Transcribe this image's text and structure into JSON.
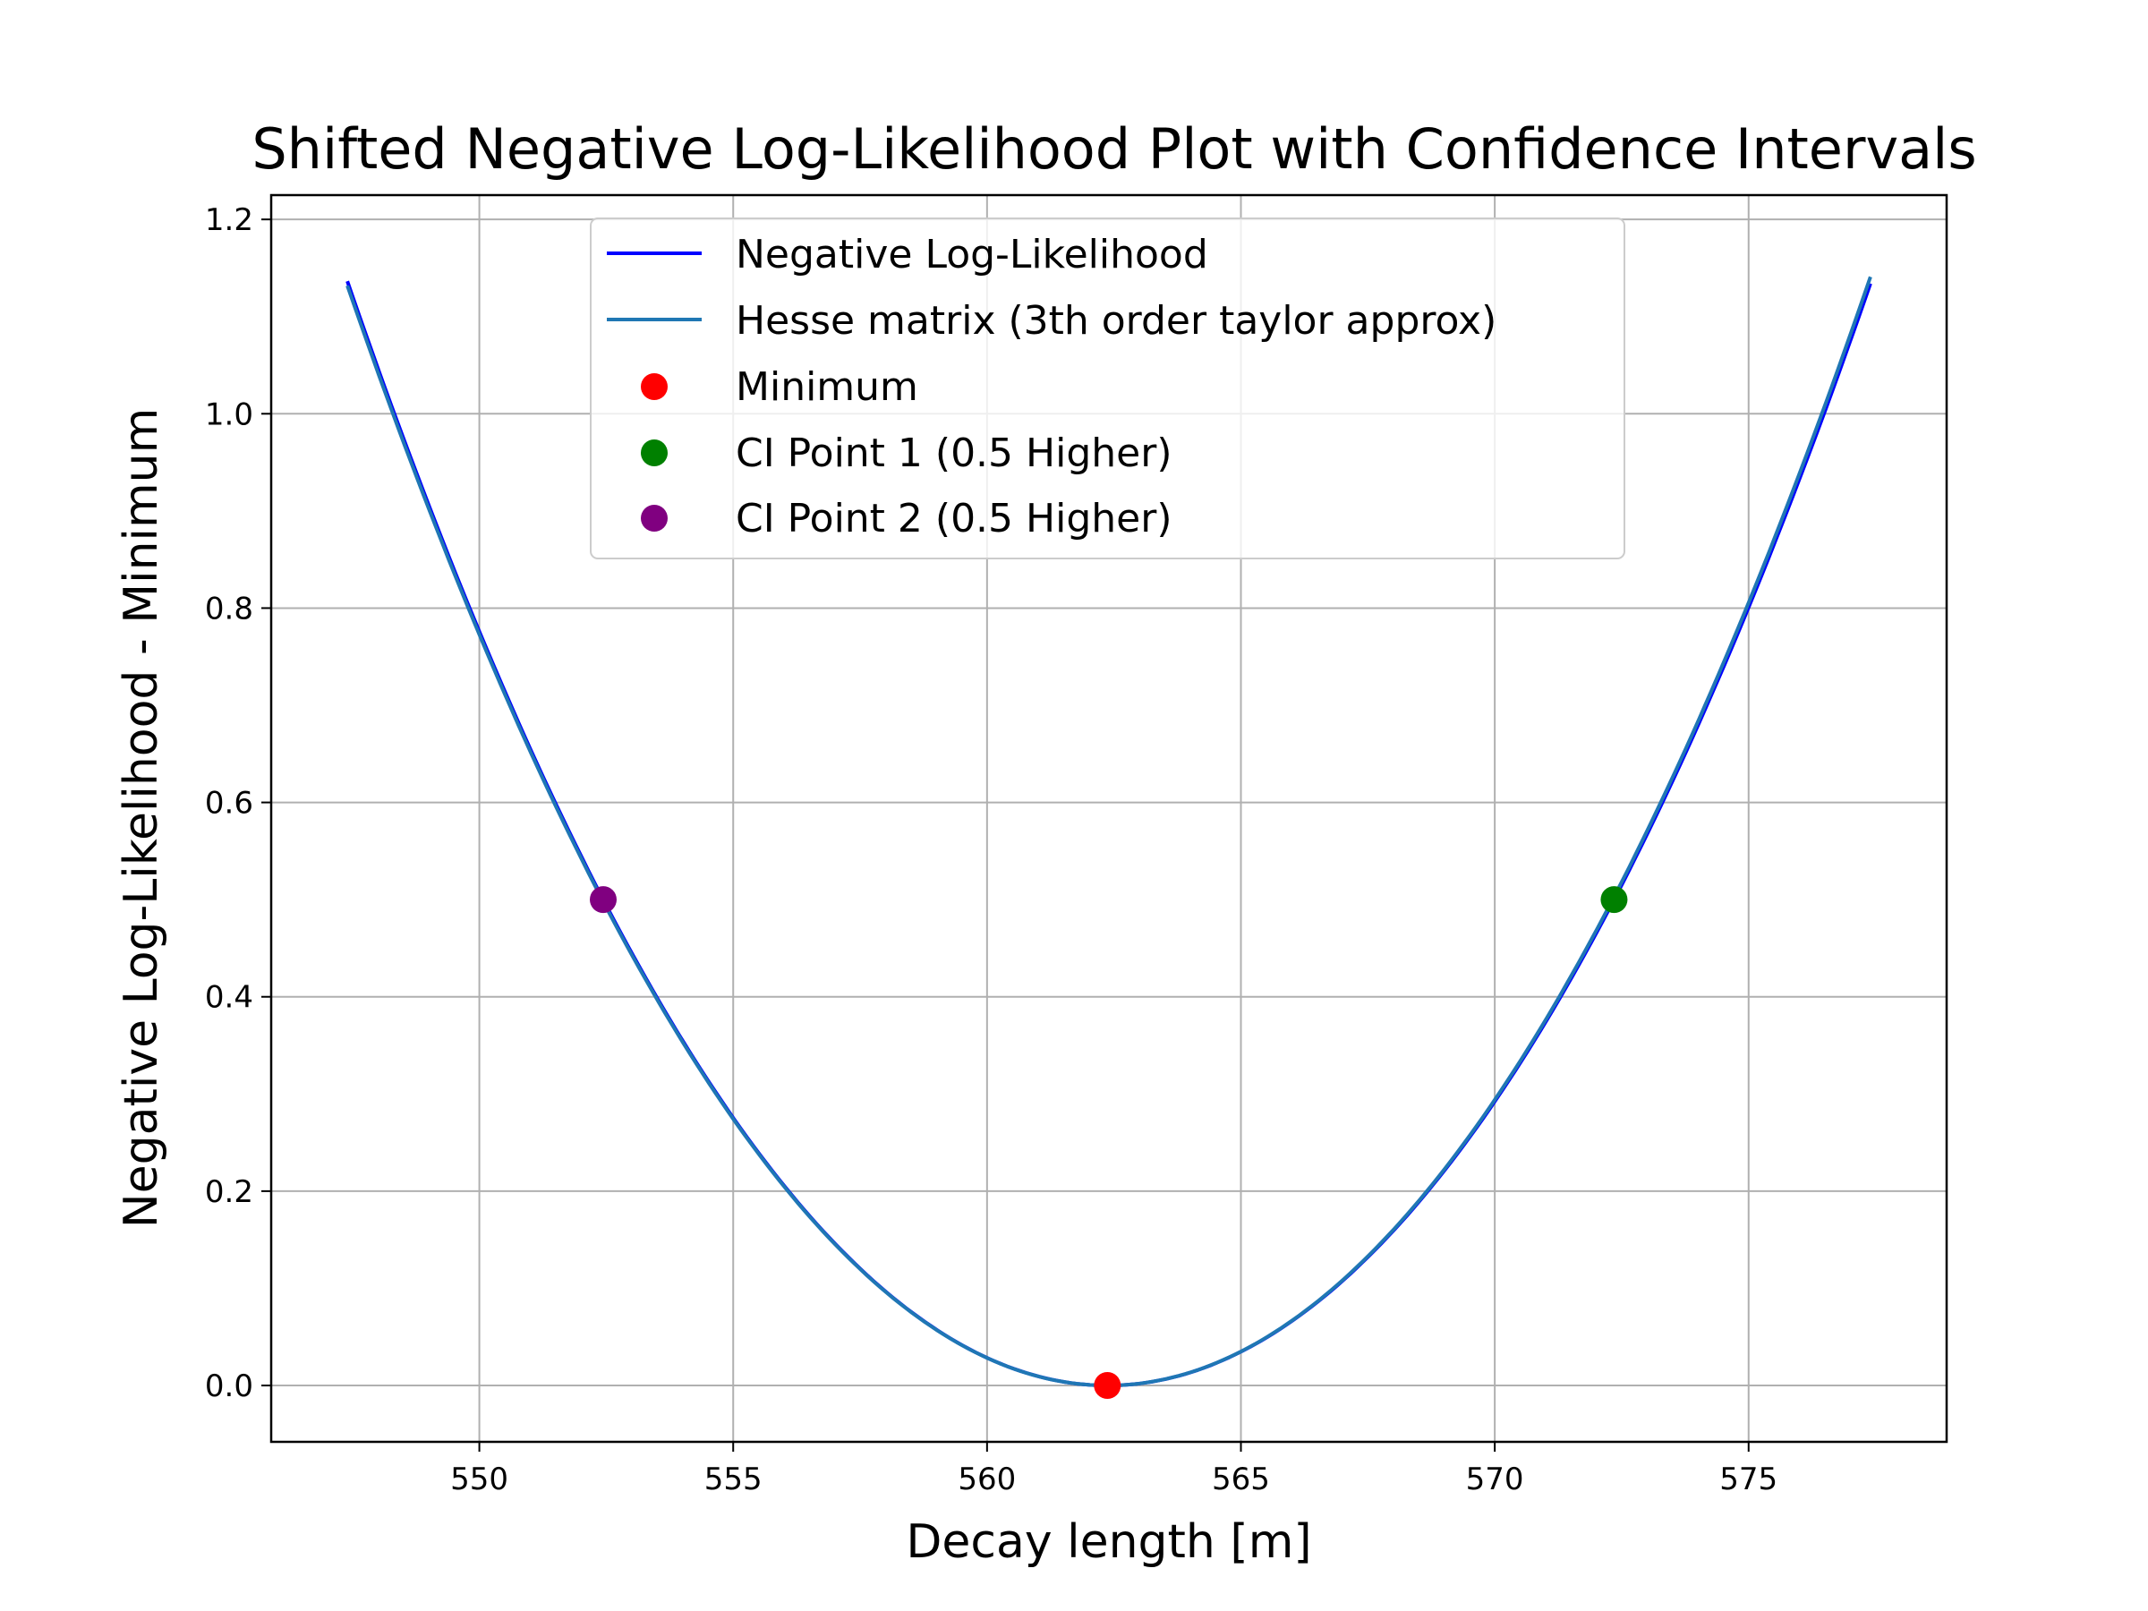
{
  "chart_data": {
    "type": "line",
    "title": "Shifted Negative Log-Likelihood Plot with Confidence Intervals",
    "xlabel": "Decay length [m]",
    "ylabel": "Negative Log-Likelihood - Minimum",
    "xlim": [
      545.9,
      578.9
    ],
    "ylim": [
      -0.058,
      1.225
    ],
    "xticks": [
      550,
      555,
      560,
      565,
      570,
      575
    ],
    "yticks": [
      0.0,
      0.2,
      0.4,
      0.6,
      0.8,
      1.0,
      1.2
    ],
    "xtick_labels": [
      "550",
      "555",
      "560",
      "565",
      "570",
      "575"
    ],
    "ytick_labels": [
      "0.0",
      "0.2",
      "0.4",
      "0.6",
      "0.8",
      "1.0",
      "1.2"
    ],
    "grid": true,
    "legend_position": "top-center",
    "minimum": {
      "x": 562.37,
      "y": 0.0
    },
    "sigma_lower": 9.93,
    "sigma_upper": 9.98,
    "series": [
      {
        "name": "Negative Log-Likelihood",
        "kind": "line",
        "color": "#0000ff",
        "x": [
          547.4,
          549.4,
          551.4,
          553.4,
          555.4,
          557.4,
          559.4,
          561.4,
          562.37,
          563.4,
          565.4,
          567.4,
          569.4,
          571.4,
          573.4,
          575.4,
          577.4
        ],
        "y": [
          1.17,
          0.87,
          0.61,
          0.4,
          0.24,
          0.13,
          0.05,
          0.01,
          0.0,
          0.01,
          0.04,
          0.12,
          0.23,
          0.38,
          0.58,
          0.82,
          1.11
        ]
      },
      {
        "name": "Hesse matrix (3th order taylor approx)",
        "kind": "line",
        "color": "#1f77b4",
        "x": [
          547.4,
          549.4,
          551.4,
          553.4,
          555.4,
          557.4,
          559.4,
          561.4,
          562.37,
          563.4,
          565.4,
          567.4,
          569.4,
          571.4,
          573.4,
          575.4,
          577.4
        ],
        "y": [
          1.14,
          0.86,
          0.61,
          0.4,
          0.24,
          0.12,
          0.04,
          0.01,
          0.0,
          0.01,
          0.04,
          0.12,
          0.23,
          0.38,
          0.59,
          0.84,
          1.14
        ]
      },
      {
        "name": "Minimum",
        "kind": "scatter",
        "color": "#ff0000",
        "x": [
          562.37
        ],
        "y": [
          0.0
        ]
      },
      {
        "name": "CI Point 1 (0.5 Higher)",
        "kind": "scatter",
        "color": "#008000",
        "x": [
          572.35
        ],
        "y": [
          0.5
        ]
      },
      {
        "name": "CI Point 2 (0.5 Higher)",
        "kind": "scatter",
        "color": "#800080",
        "x": [
          552.44
        ],
        "y": [
          0.5
        ]
      }
    ]
  }
}
